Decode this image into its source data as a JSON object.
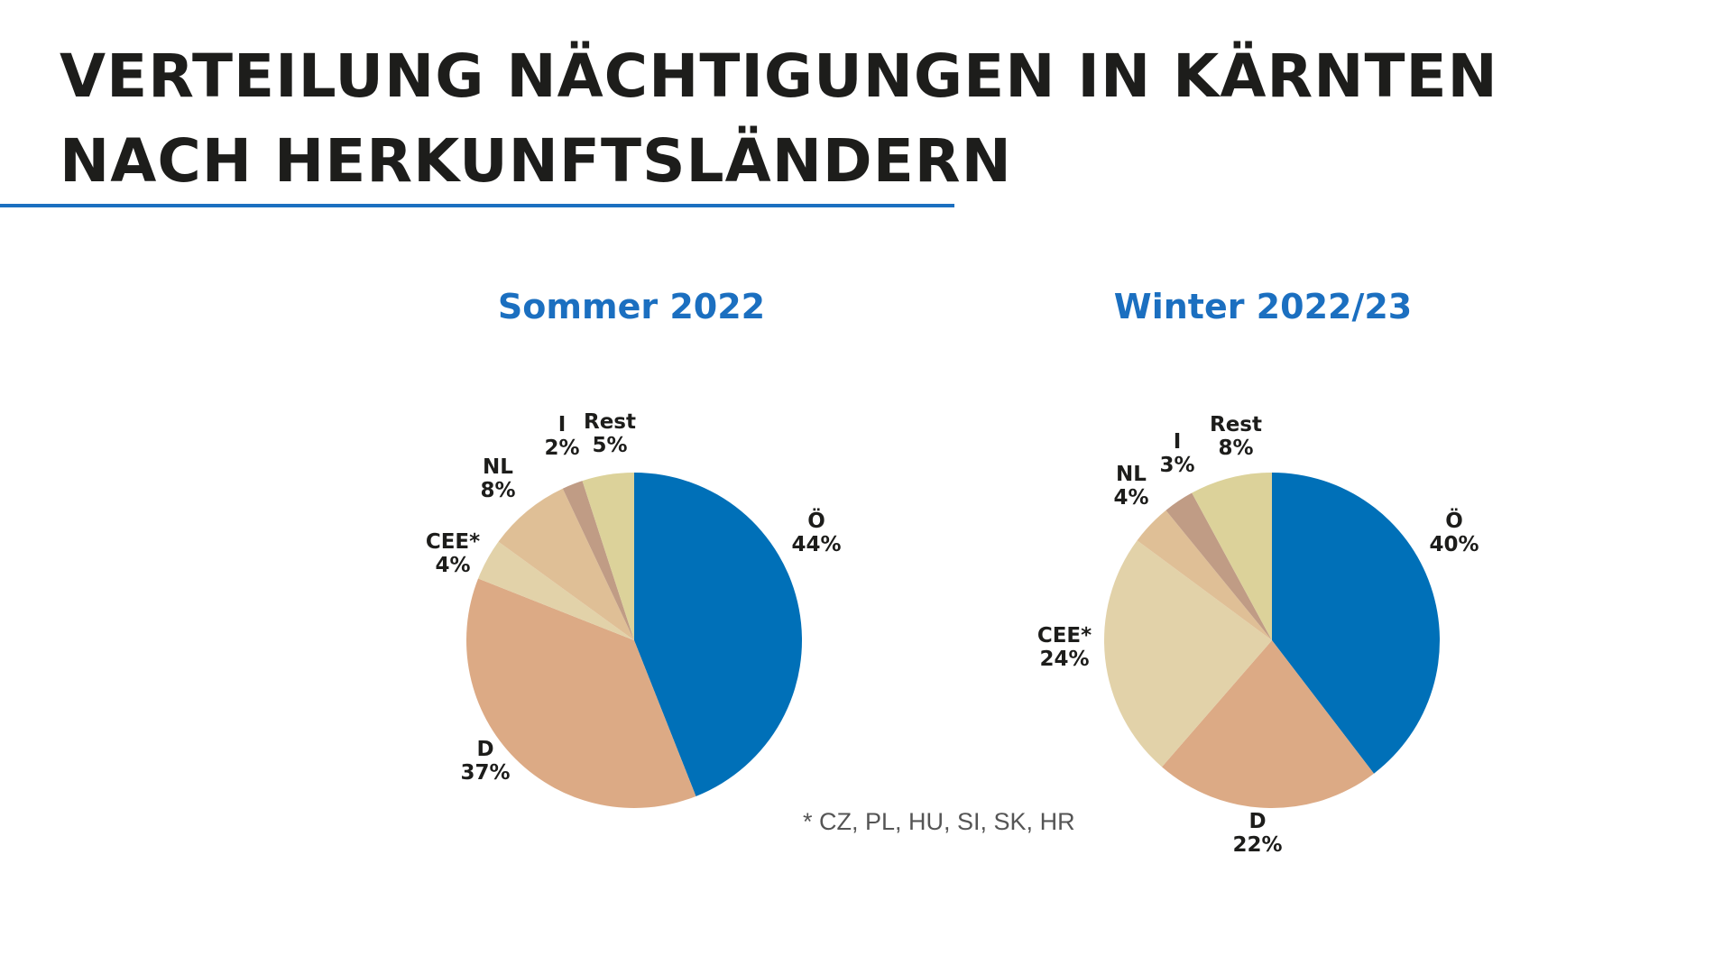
{
  "title": {
    "line1": "VERTEILUNG NÄCHTIGUNGEN IN KÄRNTEN",
    "line2": "NACH HERKUNFTSLÄNDERN"
  },
  "colors": {
    "title_rule": "#1b6fc0",
    "chart_title": "#1b6fc0",
    "slice_oesterreich": "#0070b8",
    "slice_deutschland": "#dcaa85",
    "slice_cee": "#e2d2a9",
    "slice_nl": "#dfbf96",
    "slice_italien": "#c09c85",
    "slice_rest": "#dcd29a"
  },
  "footnote": "* CZ, PL, HU, SI, SK, HR",
  "chart_data": [
    {
      "type": "pie",
      "title": "Sommer 2022",
      "slices": [
        {
          "name": "Ö",
          "value": 44,
          "label": "44%",
          "color_key": "slice_oesterreich"
        },
        {
          "name": "D",
          "value": 37,
          "label": "37%",
          "color_key": "slice_deutschland"
        },
        {
          "name": "CEE*",
          "value": 4,
          "label": "4%",
          "color_key": "slice_cee"
        },
        {
          "name": "NL",
          "value": 8,
          "label": "8%",
          "color_key": "slice_nl"
        },
        {
          "name": "I",
          "value": 2,
          "label": "2%",
          "color_key": "slice_italien"
        },
        {
          "name": "Rest",
          "value": 5,
          "label": "5%",
          "color_key": "slice_rest"
        }
      ]
    },
    {
      "type": "pie",
      "title": "Winter 2022/23",
      "slices": [
        {
          "name": "Ö",
          "value": 40,
          "label": "40%",
          "color_key": "slice_oesterreich"
        },
        {
          "name": "D",
          "value": 22,
          "label": "22%",
          "color_key": "slice_deutschland"
        },
        {
          "name": "CEE*",
          "value": 24,
          "label": "24%",
          "color_key": "slice_cee"
        },
        {
          "name": "NL",
          "value": 4,
          "label": "4%",
          "color_key": "slice_nl"
        },
        {
          "name": "I",
          "value": 3,
          "label": "3%",
          "color_key": "slice_italien"
        },
        {
          "name": "Rest",
          "value": 8,
          "label": "8%",
          "color_key": "slice_rest"
        }
      ]
    }
  ]
}
